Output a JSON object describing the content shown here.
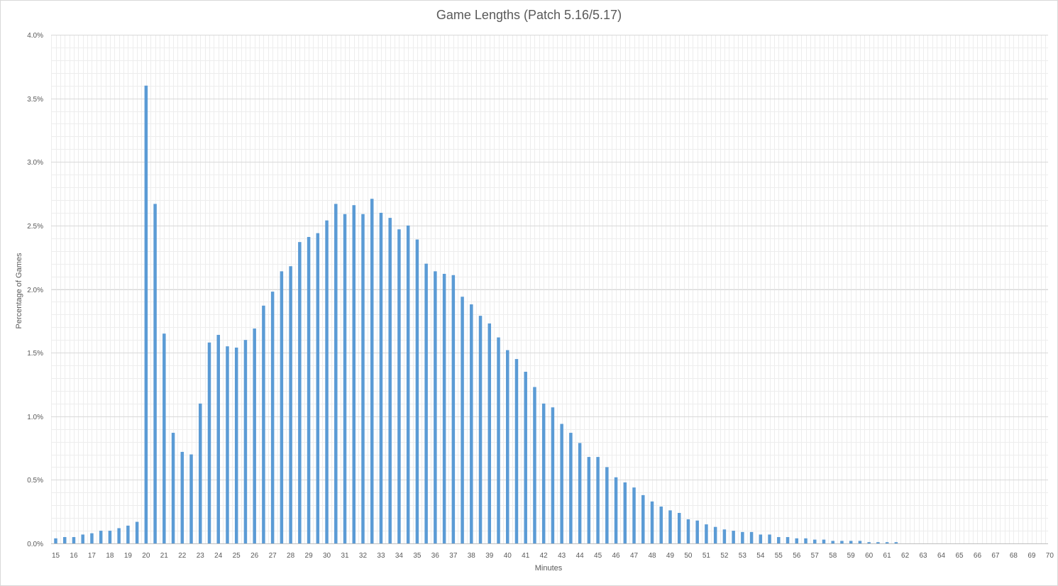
{
  "chart_data": {
    "type": "bar",
    "title": "Game Lengths (Patch 5.16/5.17)",
    "xlabel": "Minutes",
    "ylabel": "Percentage of Games",
    "ylim": [
      0,
      4.0
    ],
    "xlim": [
      15,
      70
    ],
    "y_ticks": [
      "0.0%",
      "0.5%",
      "1.0%",
      "1.5%",
      "2.0%",
      "2.5%",
      "3.0%",
      "3.5%",
      "4.0%"
    ],
    "x_ticks": [
      "15",
      "16",
      "17",
      "18",
      "19",
      "20",
      "21",
      "22",
      "23",
      "24",
      "25",
      "26",
      "27",
      "28",
      "29",
      "30",
      "31",
      "32",
      "33",
      "34",
      "35",
      "36",
      "37",
      "38",
      "39",
      "40",
      "41",
      "42",
      "43",
      "44",
      "45",
      "46",
      "47",
      "48",
      "49",
      "50",
      "51",
      "52",
      "53",
      "54",
      "55",
      "56",
      "57",
      "58",
      "59",
      "60",
      "61",
      "62",
      "63",
      "64",
      "65",
      "66",
      "67",
      "68",
      "69",
      "70"
    ],
    "grid": true,
    "bar_color": "#5b9bd5",
    "series": [
      {
        "x": [
          15,
          15.5,
          16,
          16.5,
          17,
          17.5,
          18,
          18.5,
          19,
          19.5,
          20,
          20.5,
          21,
          21.5,
          22,
          22.5,
          23,
          23.5,
          24,
          24.5,
          25,
          25.5,
          26,
          26.5,
          27,
          27.5,
          28,
          28.5,
          29,
          29.5,
          30,
          30.5,
          31,
          31.5,
          32,
          32.5,
          33,
          33.5,
          34,
          34.5,
          35,
          35.5,
          36,
          36.5,
          37,
          37.5,
          38,
          38.5,
          39,
          39.5,
          40,
          40.5,
          41,
          41.5,
          42,
          42.5,
          43,
          43.5,
          44,
          44.5,
          45,
          45.5,
          46,
          46.5,
          47,
          47.5,
          48,
          48.5,
          49,
          49.5,
          50,
          50.5,
          51,
          51.5,
          52,
          52.5,
          53,
          53.5,
          54,
          54.5,
          55,
          55.5,
          56,
          56.5,
          57,
          57.5,
          58,
          58.5,
          59,
          59.5,
          60,
          60.5,
          61,
          61.5
        ],
        "values": [
          0.04,
          0.05,
          0.05,
          0.07,
          0.08,
          0.1,
          0.1,
          0.12,
          0.14,
          0.17,
          3.6,
          2.67,
          1.65,
          0.87,
          0.72,
          0.7,
          1.1,
          1.58,
          1.64,
          1.55,
          1.54,
          1.6,
          1.69,
          1.87,
          1.98,
          2.14,
          2.18,
          2.37,
          2.41,
          2.44,
          2.54,
          2.67,
          2.59,
          2.66,
          2.59,
          2.71,
          2.6,
          2.56,
          2.47,
          2.5,
          2.39,
          2.2,
          2.14,
          2.12,
          2.11,
          1.94,
          1.88,
          1.79,
          1.73,
          1.62,
          1.52,
          1.45,
          1.35,
          1.23,
          1.1,
          1.07,
          0.94,
          0.87,
          0.79,
          0.68,
          0.68,
          0.6,
          0.52,
          0.48,
          0.44,
          0.38,
          0.33,
          0.29,
          0.26,
          0.24,
          0.19,
          0.18,
          0.15,
          0.13,
          0.11,
          0.1,
          0.09,
          0.09,
          0.07,
          0.07,
          0.05,
          0.05,
          0.04,
          0.04,
          0.03,
          0.03,
          0.02,
          0.02,
          0.02,
          0.02,
          0.01,
          0.01,
          0.01,
          0.01
        ]
      }
    ]
  }
}
